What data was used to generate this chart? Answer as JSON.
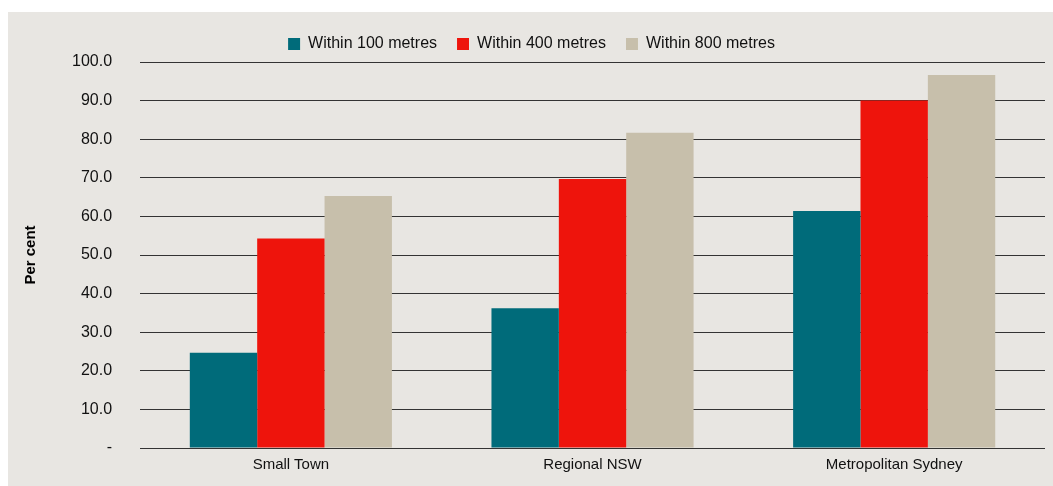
{
  "chart_data": {
    "type": "bar",
    "ylabel": "Per cent",
    "categories": [
      "Small Town",
      "Regional NSW",
      "Metropolitan Sydney"
    ],
    "series": [
      {
        "name": "Within 100 metres",
        "color": "#006b7a",
        "values": [
          24.7,
          36.2,
          61.4
        ]
      },
      {
        "name": "Within 400 metres",
        "color": "#ee140c",
        "values": [
          54.3,
          69.7,
          90.0
        ]
      },
      {
        "name": "Within 800 metres",
        "color": "#c7bfab",
        "values": [
          65.3,
          81.7,
          96.6
        ]
      }
    ],
    "ylim": [
      0,
      100
    ],
    "yticks": [
      {
        "value": 0,
        "label": "-"
      },
      {
        "value": 10,
        "label": "10.0"
      },
      {
        "value": 20,
        "label": "20.0"
      },
      {
        "value": 30,
        "label": "30.0"
      },
      {
        "value": 40,
        "label": "40.0"
      },
      {
        "value": 50,
        "label": "50.0"
      },
      {
        "value": 60,
        "label": "60.0"
      },
      {
        "value": 70,
        "label": "70.0"
      },
      {
        "value": 80,
        "label": "80.0"
      },
      {
        "value": 90,
        "label": "90.0"
      },
      {
        "value": 100,
        "label": "100.0"
      }
    ],
    "grid": "y",
    "legend": "top"
  }
}
